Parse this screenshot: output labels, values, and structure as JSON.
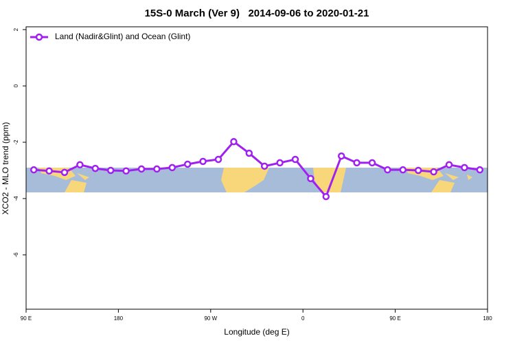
{
  "chart_data": {
    "type": "line",
    "title": "15S-0 March (Ver 9)   2014-09-06 to 2020-01-21",
    "x_label": "Longitude (deg E)",
    "y_label": "XCO2 - MLO trend (ppm)",
    "x": [
      97.5,
      112.5,
      127.5,
      142.5,
      157.5,
      172.5,
      187.5,
      202.5,
      217.5,
      232.5,
      247.5,
      262.5,
      277.5,
      292.5,
      307.5,
      322.5,
      337.5,
      352.5,
      367.5,
      382.5,
      397.5,
      412.5,
      427.5,
      442.5,
      457.5,
      472.5,
      487.5,
      502.5,
      517.5,
      532.5
    ],
    "series": [
      {
        "name": "Land (Nadir&Glint) and Ocean (Glint)",
        "color": "#a020f0",
        "values": [
          -2.98,
          -3.02,
          -3.07,
          -2.8,
          -2.93,
          -3.0,
          -3.02,
          -2.95,
          -2.95,
          -2.9,
          -2.78,
          -2.68,
          -2.61,
          -1.98,
          -2.39,
          -2.85,
          -2.73,
          -2.61,
          -3.29,
          -3.93,
          -2.49,
          -2.73,
          -2.73,
          -2.98,
          -2.98,
          -3.0,
          -3.05,
          -2.8,
          -2.9,
          -2.98
        ]
      }
    ],
    "xlim": [
      90,
      540
    ],
    "xticks": [
      {
        "value": 90,
        "label": "90 E"
      },
      180,
      {
        "value": 270,
        "label": "90 W"
      },
      {
        "value": 360,
        "label": "0"
      },
      {
        "value": 450,
        "label": "90 E"
      },
      {
        "value": 540,
        "label": "180"
      }
    ],
    "ylim": [
      -7.93,
      2.1
    ],
    "yticks": [
      2,
      0,
      -2,
      -4,
      -6
    ],
    "legend": "top-left"
  }
}
